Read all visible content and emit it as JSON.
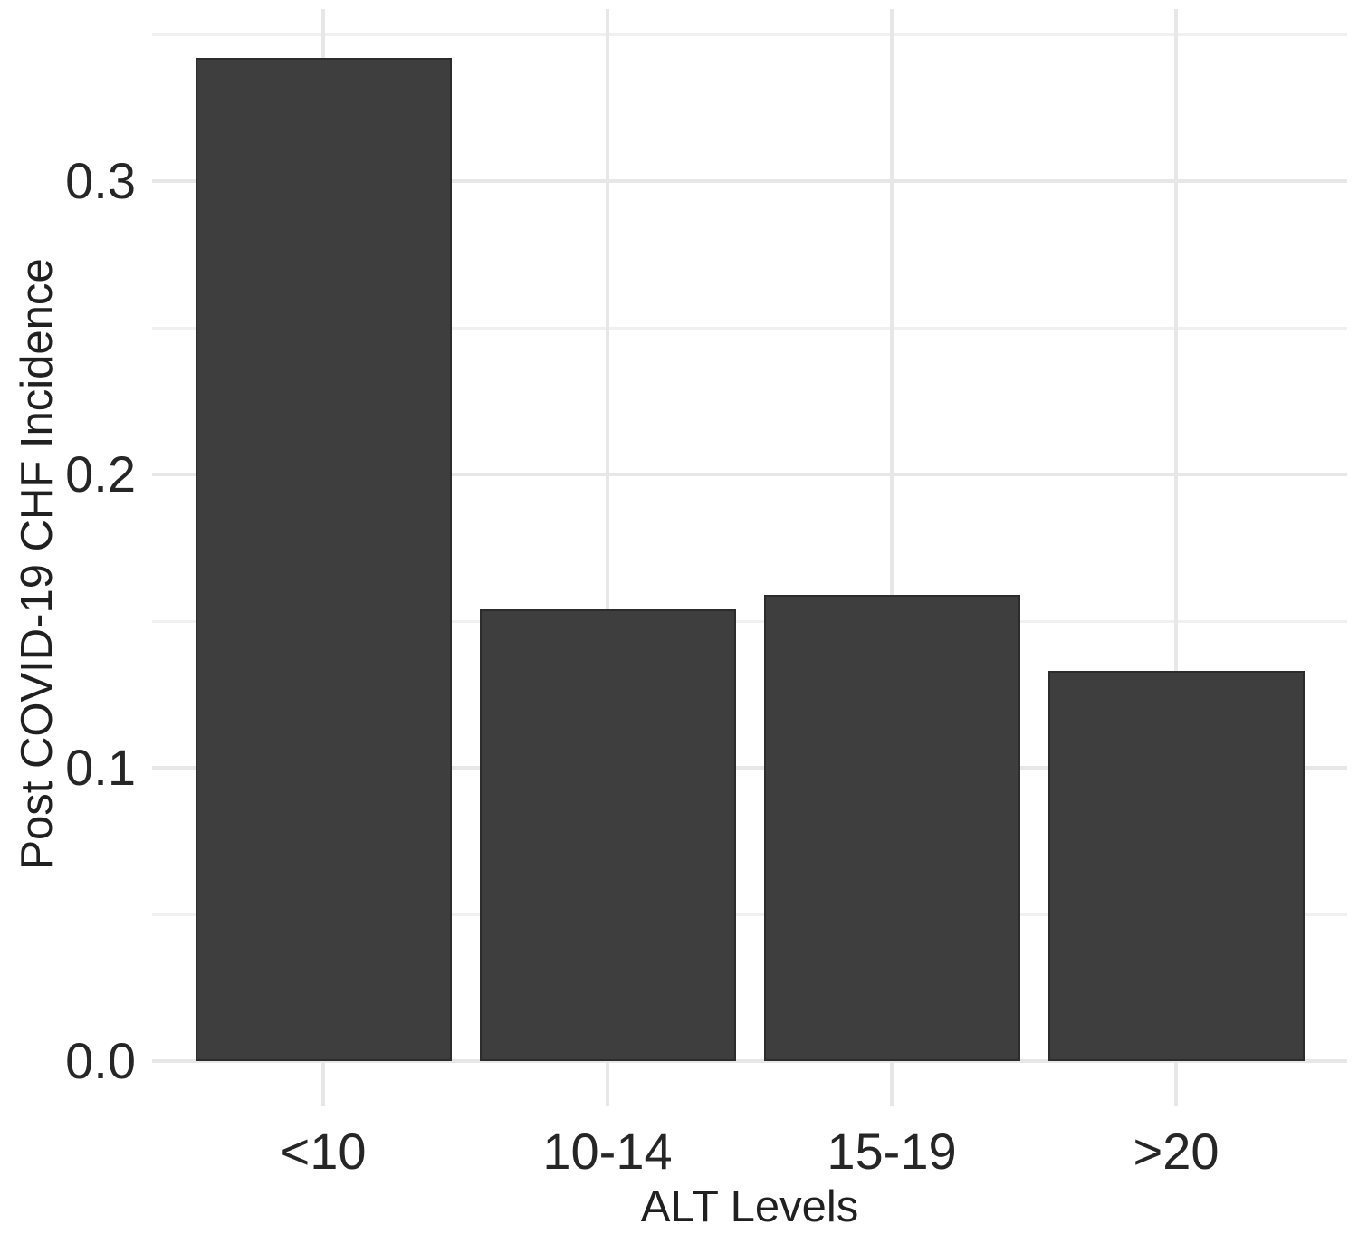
{
  "figure": {
    "background": "#ffffff"
  },
  "chart_data": {
    "type": "bar",
    "title": "",
    "categories": [
      "<10",
      "10-14",
      "15-19",
      ">20"
    ],
    "values": [
      0.342,
      0.154,
      0.159,
      0.133
    ],
    "xlabel": "ALT Levels",
    "ylabel": "Post COVID-19 CHF Incidence",
    "ylim": [
      -0.015,
      0.359
    ],
    "yticks": [
      0.0,
      0.1,
      0.2,
      0.3
    ],
    "ytick_labels": [
      "0.0",
      "0.1",
      "0.2",
      "0.3"
    ],
    "yminor_ticks": [
      0.05,
      0.15,
      0.25,
      0.35
    ],
    "grid": "on",
    "legend": "none",
    "colors": {
      "bar_fill": "#3e3e3e",
      "bar_border": "#2c2c2c",
      "grid_major": "#e7e7e7",
      "grid_minor": "#f0f0f0",
      "tick_text": "#262626",
      "title_text": "#202020"
    }
  }
}
